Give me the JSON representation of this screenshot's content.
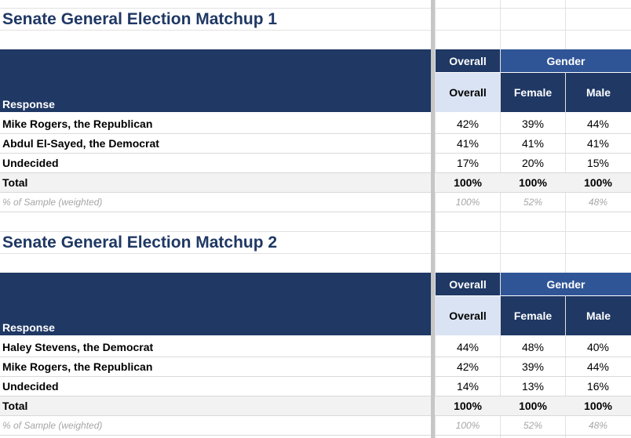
{
  "colors": {
    "header_dark": "#1f3864",
    "header_mid": "#2f5597",
    "header_light": "#dae3f3",
    "title": "#1f3864",
    "total_bg": "#f2f2f2",
    "sample_text": "#a6a6a6"
  },
  "tables": [
    {
      "title": "Senate General Election Matchup 1",
      "group_headers": {
        "overall": "Overall",
        "gender": "Gender"
      },
      "col_headers": {
        "overall": "Overall",
        "female": "Female",
        "male": "Male"
      },
      "response_label": "Response",
      "rows": [
        {
          "label": "Mike Rogers, the Republican",
          "overall": "42%",
          "female": "39%",
          "male": "44%"
        },
        {
          "label": "Abdul El-Sayed, the Democrat",
          "overall": "41%",
          "female": "41%",
          "male": "41%"
        },
        {
          "label": "Undecided",
          "overall": "17%",
          "female": "20%",
          "male": "15%"
        }
      ],
      "total": {
        "label": "Total",
        "overall": "100%",
        "female": "100%",
        "male": "100%"
      },
      "sample": {
        "label": "% of Sample (weighted)",
        "overall": "100%",
        "female": "52%",
        "male": "48%"
      }
    },
    {
      "title": "Senate General Election Matchup 2",
      "group_headers": {
        "overall": "Overall",
        "gender": "Gender"
      },
      "col_headers": {
        "overall": "Overall",
        "female": "Female",
        "male": "Male"
      },
      "response_label": "Response",
      "rows": [
        {
          "label": "Haley Stevens, the Democrat",
          "overall": "44%",
          "female": "48%",
          "male": "40%"
        },
        {
          "label": "Mike Rogers, the Republican",
          "overall": "42%",
          "female": "39%",
          "male": "44%"
        },
        {
          "label": "Undecided",
          "overall": "14%",
          "female": "13%",
          "male": "16%"
        }
      ],
      "total": {
        "label": "Total",
        "overall": "100%",
        "female": "100%",
        "male": "100%"
      },
      "sample": {
        "label": "% of Sample (weighted)",
        "overall": "100%",
        "female": "52%",
        "male": "48%"
      }
    }
  ]
}
